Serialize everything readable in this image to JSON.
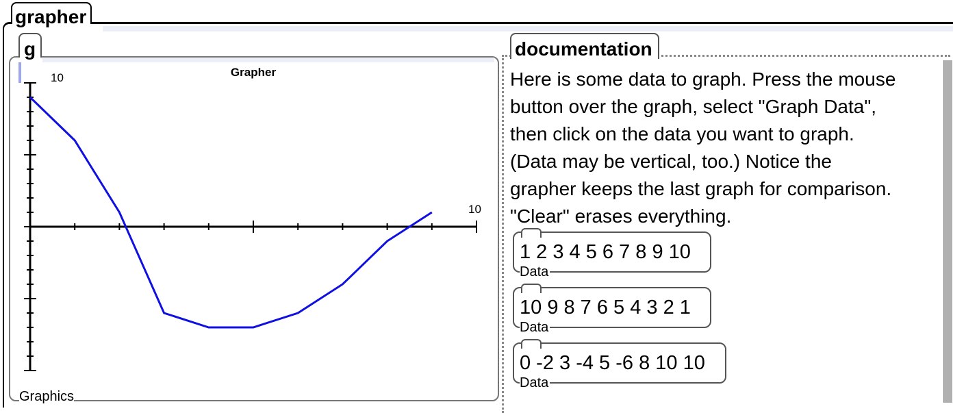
{
  "window": {
    "title": "grapher"
  },
  "graph_panel": {
    "tab_label": "g",
    "footer_label": "Graphics"
  },
  "doc_panel": {
    "tab_label": "documentation",
    "lines": [
      "Here is some data to graph. Press the mouse",
      "button over the graph, select \"Graph Data\",",
      "then click on the data you want to graph.",
      "(Data may be vertical, too.) Notice the",
      "grapher keeps the last graph for comparison.",
      "\"Clear\" erases everything."
    ],
    "data_items": [
      {
        "values": "1 2 3 4 5 6 7 8 9 10",
        "label": "Data"
      },
      {
        "values": "10 9 8 7 6 5 4 3 2 1",
        "label": "Data"
      },
      {
        "values": "0 -2 3 -4 5 -6 8 10 10",
        "label": "Data"
      }
    ]
  },
  "chart_data": {
    "type": "line",
    "title": "Grapher",
    "x_tick_label": "10",
    "y_tick_label": "10",
    "xlim": [
      0,
      10
    ],
    "ylim": [
      -10,
      10
    ],
    "series": [
      {
        "x": [
          0,
          1,
          2,
          3,
          4,
          5,
          6,
          7,
          8,
          9
        ],
        "y": [
          9,
          6,
          1,
          -6,
          -7,
          -7,
          -6,
          -4,
          -1,
          1
        ]
      }
    ],
    "line_color": "#1010e0"
  }
}
